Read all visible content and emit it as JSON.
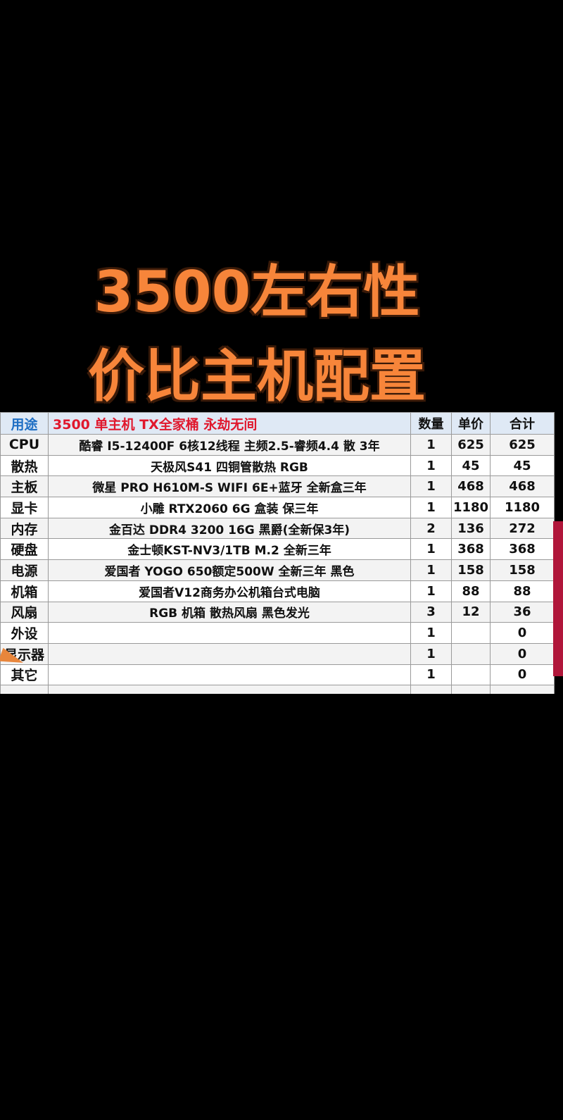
{
  "title": {
    "line1": "3500左右性",
    "line2": "价比主机配置"
  },
  "table": {
    "header": {
      "label": "用途",
      "title": "3500 单主机 TX全家桶  永劫无间",
      "qty": "数量",
      "price": "单价",
      "total": "合计"
    },
    "rows": [
      {
        "label": "CPU",
        "desc": "酷睿 I5-12400F 6核12线程 主频2.5-睿频4.4 散 3年",
        "qty": "1",
        "price": "625",
        "total": "625"
      },
      {
        "label": "散热",
        "desc": "天极风S41 四铜管散热 RGB",
        "qty": "1",
        "price": "45",
        "total": "45"
      },
      {
        "label": "主板",
        "desc": "微星 PRO H610M-S WIFI 6E+蓝牙  全新盒三年",
        "qty": "1",
        "price": "468",
        "total": "468"
      },
      {
        "label": "显卡",
        "desc": "小雕 RTX2060 6G 盒装 保三年",
        "qty": "1",
        "price": "1180",
        "total": "1180"
      },
      {
        "label": "内存",
        "desc": "金百达 DDR4 3200 16G 黑爵(全新保3年)",
        "qty": "2",
        "price": "136",
        "total": "272"
      },
      {
        "label": "硬盘",
        "desc": "金士顿KST-NV3/1TB M.2  全新三年",
        "qty": "1",
        "price": "368",
        "total": "368"
      },
      {
        "label": "电源",
        "desc": "爱国者 YOGO 650额定500W  全新三年 黑色",
        "qty": "1",
        "price": "158",
        "total": "158"
      },
      {
        "label": "机箱",
        "desc": "爱国者V12商务办公机箱台式电脑",
        "qty": "1",
        "price": "88",
        "total": "88"
      },
      {
        "label": "风扇",
        "desc": "RGB  机箱 散热风扇  黑色发光",
        "qty": "3",
        "price": "12",
        "total": "36"
      },
      {
        "label": "外设",
        "desc": "",
        "qty": "1",
        "price": "",
        "total": "0"
      },
      {
        "label": "显示器",
        "desc": "",
        "qty": "1",
        "price": "",
        "total": "0"
      },
      {
        "label": "其它",
        "desc": "",
        "qty": "1",
        "price": "",
        "total": "0"
      }
    ]
  },
  "colors": {
    "title": "#f7853a",
    "header_label": "#1f6fc4",
    "header_title": "#e0182d",
    "header_bg": "#dfe9f5"
  }
}
